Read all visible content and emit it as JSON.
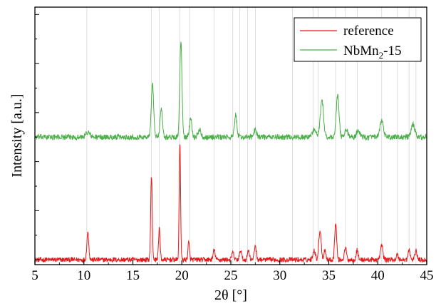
{
  "chart_data": {
    "type": "line",
    "xlabel": "2θ [°]",
    "ylabel": "Intensity [a.u.]",
    "xlim": [
      5,
      45
    ],
    "x_ticks": [
      5,
      10,
      15,
      20,
      25,
      30,
      35,
      40,
      45
    ],
    "y_ticks_labeled": false,
    "grid": "vertical dashed lines at reflection positions",
    "legend": "top-right",
    "reflection_lines": [
      10.3,
      16.9,
      17.7,
      19.8,
      20.8,
      23.3,
      25.2,
      25.9,
      26.7,
      27.5,
      31.3,
      33.4,
      33.9,
      35.7,
      36.7,
      37.9,
      40.4,
      42.0,
      43.2,
      43.9
    ],
    "series": [
      {
        "name": "reference",
        "color": "#e31a1c",
        "baseline": 0.0,
        "noise": 0.02,
        "peaks": [
          {
            "x": 10.4,
            "h": 0.11,
            "w": 0.1
          },
          {
            "x": 16.9,
            "h": 0.34,
            "w": 0.08
          },
          {
            "x": 17.7,
            "h": 0.13,
            "w": 0.08
          },
          {
            "x": 19.8,
            "h": 0.48,
            "w": 0.07
          },
          {
            "x": 20.7,
            "h": 0.07,
            "w": 0.08
          },
          {
            "x": 23.3,
            "h": 0.04,
            "w": 0.1
          },
          {
            "x": 25.2,
            "h": 0.03,
            "w": 0.1
          },
          {
            "x": 26.0,
            "h": 0.04,
            "w": 0.1
          },
          {
            "x": 26.8,
            "h": 0.04,
            "w": 0.1
          },
          {
            "x": 27.5,
            "h": 0.06,
            "w": 0.1
          },
          {
            "x": 33.5,
            "h": 0.04,
            "w": 0.12
          },
          {
            "x": 34.1,
            "h": 0.12,
            "w": 0.12
          },
          {
            "x": 34.6,
            "h": 0.04,
            "w": 0.1
          },
          {
            "x": 35.7,
            "h": 0.15,
            "w": 0.1
          },
          {
            "x": 36.7,
            "h": 0.05,
            "w": 0.1
          },
          {
            "x": 37.9,
            "h": 0.04,
            "w": 0.1
          },
          {
            "x": 40.4,
            "h": 0.06,
            "w": 0.12
          },
          {
            "x": 42.0,
            "h": 0.02,
            "w": 0.1
          },
          {
            "x": 43.2,
            "h": 0.04,
            "w": 0.1
          },
          {
            "x": 43.9,
            "h": 0.04,
            "w": 0.1
          }
        ]
      },
      {
        "name": "NbMn2-15",
        "name_parts": [
          "NbMn",
          "2",
          "-15"
        ],
        "color": "#4daf4a",
        "baseline": 0.5,
        "noise": 0.022,
        "peaks": [
          {
            "x": 10.4,
            "h": 0.02,
            "w": 0.2
          },
          {
            "x": 17.0,
            "h": 0.22,
            "w": 0.12
          },
          {
            "x": 17.9,
            "h": 0.12,
            "w": 0.12
          },
          {
            "x": 19.9,
            "h": 0.39,
            "w": 0.11
          },
          {
            "x": 20.9,
            "h": 0.08,
            "w": 0.12
          },
          {
            "x": 21.8,
            "h": 0.03,
            "w": 0.15
          },
          {
            "x": 25.5,
            "h": 0.09,
            "w": 0.12
          },
          {
            "x": 27.5,
            "h": 0.03,
            "w": 0.15
          },
          {
            "x": 33.5,
            "h": 0.03,
            "w": 0.2
          },
          {
            "x": 34.3,
            "h": 0.15,
            "w": 0.16
          },
          {
            "x": 35.9,
            "h": 0.17,
            "w": 0.14
          },
          {
            "x": 36.8,
            "h": 0.03,
            "w": 0.15
          },
          {
            "x": 38.0,
            "h": 0.03,
            "w": 0.15
          },
          {
            "x": 40.4,
            "h": 0.07,
            "w": 0.16
          },
          {
            "x": 43.6,
            "h": 0.05,
            "w": 0.18
          }
        ]
      }
    ]
  }
}
